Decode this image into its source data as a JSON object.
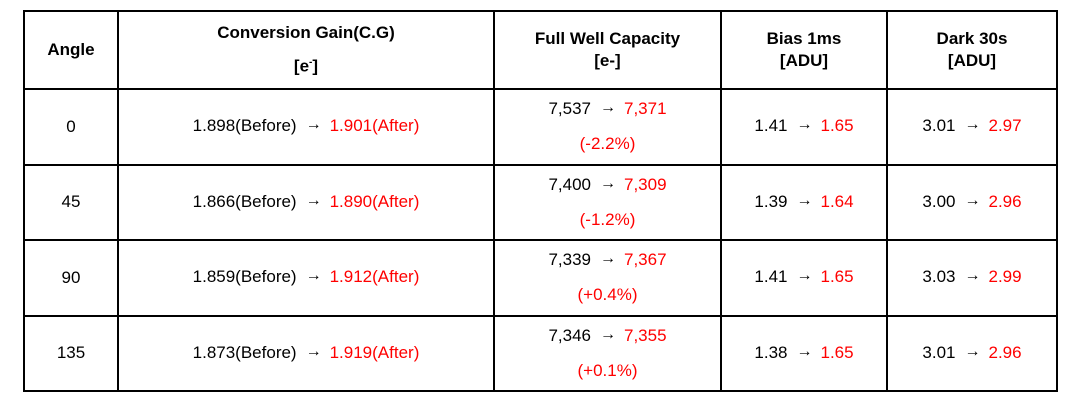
{
  "headers": {
    "angle": "Angle",
    "cg_line1": "Conversion  Gain(C.G)",
    "cg_line2": "[e",
    "cg_sup": "-",
    "cg_close": "]",
    "fwc_line1": "Full  Well  Capacity",
    "fwc_line2": "[e-]",
    "bias_line1": "Bias  1ms",
    "bias_line2": "[ADU]",
    "dark_line1": "Dark  30s",
    "dark_line2": "[ADU]"
  },
  "arrow": "→",
  "rows": [
    {
      "angle": "0",
      "cg_before": "1.898(Before)",
      "cg_after": "1.901(After)",
      "fwc_before": "7,537",
      "fwc_after": "7,371",
      "fwc_change": "(-2.2%)",
      "bias_before": "1.41",
      "bias_after": "1.65",
      "dark_before": "3.01",
      "dark_after": "2.97"
    },
    {
      "angle": "45",
      "cg_before": "1.866(Before)",
      "cg_after": "1.890(After)",
      "fwc_before": "7,400",
      "fwc_after": "7,309",
      "fwc_change": "(-1.2%)",
      "bias_before": "1.39",
      "bias_after": "1.64",
      "dark_before": "3.00",
      "dark_after": "2.96"
    },
    {
      "angle": "90",
      "cg_before": "1.859(Before)",
      "cg_after": "1.912(After)",
      "fwc_before": "7,339",
      "fwc_after": "7,367",
      "fwc_change": "(+0.4%)",
      "bias_before": "1.41",
      "bias_after": "1.65",
      "dark_before": "3.03",
      "dark_after": "2.99"
    },
    {
      "angle": "135",
      "cg_before": "1.873(Before)",
      "cg_after": "1.919(After)",
      "fwc_before": "7,346",
      "fwc_after": "7,355",
      "fwc_change": "(+0.1%)",
      "bias_before": "1.38",
      "bias_after": "1.65",
      "dark_before": "3.01",
      "dark_after": "2.96"
    }
  ],
  "colors": {
    "after_value": "#ff0000",
    "text": "#000000",
    "border": "#000000"
  }
}
